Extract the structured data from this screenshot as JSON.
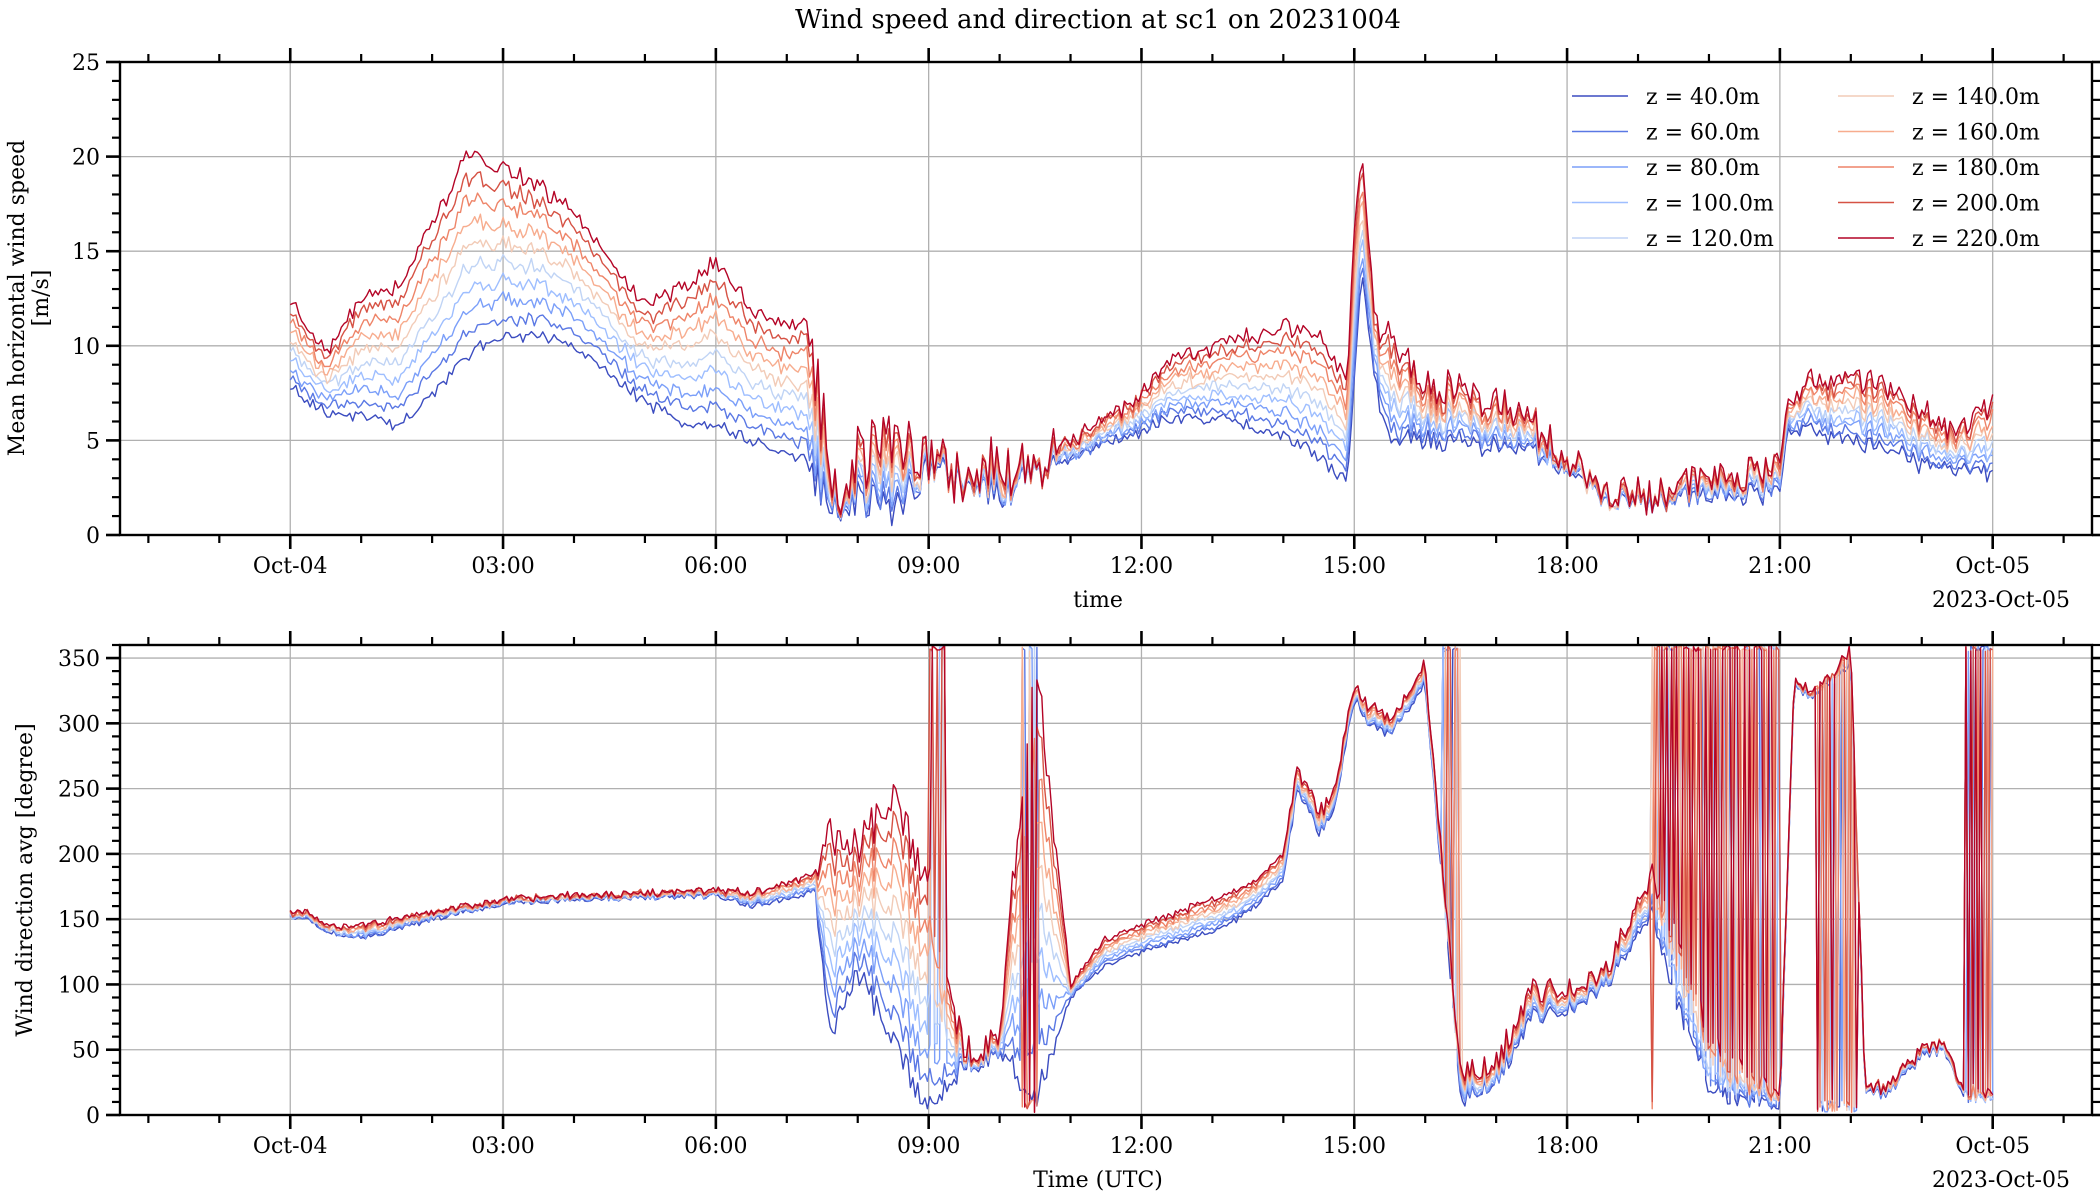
{
  "figure": {
    "title": "Wind speed and direction at sc1 on 20231004",
    "start_label": "Oct-04",
    "end_label": "Oct-05",
    "date_offset_label": "2023-Oct-05"
  },
  "chart_data": [
    {
      "type": "line",
      "ylabel_lines": [
        "Mean horizontal wind speed",
        "[m/s]"
      ],
      "xlabel": "time",
      "x_unit": "hours after 2023-10-04 00:00 UTC",
      "xlim": [
        -2.4,
        25.4
      ],
      "ylim": [
        0,
        25
      ],
      "y_major_ticks": [
        0,
        5,
        10,
        15,
        20,
        25
      ],
      "y_minor_step": 1,
      "x_major_ticks": [
        0,
        3,
        6,
        9,
        12,
        15,
        18,
        21,
        24
      ],
      "x_major_labels": [
        "Oct-04",
        "03:00",
        "06:00",
        "09:00",
        "12:00",
        "15:00",
        "18:00",
        "21:00",
        "Oct-05"
      ],
      "grid": true,
      "legend": "top-right",
      "legend_columns": 2,
      "series_names": [
        "z = 40.0m",
        "z = 60.0m",
        "z = 80.0m",
        "z = 100.0m",
        "z = 120.0m",
        "z = 140.0m",
        "z = 160.0m",
        "z = 180.0m",
        "z = 200.0m",
        "z = 220.0m"
      ],
      "series_colors": [
        "#3b4cc0",
        "#5a78e4",
        "#7b9ff9",
        "#9ebeff",
        "#c0d4f5",
        "#f2cbb7",
        "#f7ac8e",
        "#ee8468",
        "#d65244",
        "#b40426"
      ],
      "bottom_series_approx": {
        "x": [
          0,
          0.25,
          0.5,
          1.0,
          1.5,
          2.0,
          2.5,
          3.0,
          3.5,
          4.0,
          4.5,
          5.0,
          5.5,
          6.0,
          6.5,
          7.0,
          7.3,
          7.5,
          7.7,
          8.0,
          8.5,
          9.0,
          9.5,
          10.0,
          10.5,
          11.0,
          11.5,
          12.0,
          12.5,
          13.0,
          13.5,
          14.0,
          14.5,
          14.9,
          15.0,
          15.1,
          15.3,
          15.5,
          16.0,
          16.5,
          17.0,
          17.5,
          18.0,
          18.5,
          19.0,
          19.5,
          20.0,
          20.5,
          21.0,
          21.1,
          21.5,
          22.0,
          22.5,
          23.0,
          23.5,
          24.0
        ],
        "y": [
          7.8,
          7.0,
          6.5,
          6.3,
          5.8,
          7.5,
          9.5,
          10.5,
          10.5,
          10.0,
          8.5,
          7.0,
          6.0,
          5.8,
          5.0,
          4.3,
          4.0,
          2.0,
          1.5,
          2.0,
          1.5,
          3.5,
          3.0,
          2.0,
          3.8,
          4.0,
          4.8,
          5.5,
          6.2,
          6.2,
          5.8,
          5.2,
          4.2,
          2.8,
          8.0,
          14.0,
          8.0,
          5.0,
          5.2,
          4.8,
          4.8,
          4.5,
          3.5,
          2.0,
          1.8,
          2.0,
          2.0,
          2.2,
          2.3,
          5.8,
          5.5,
          5.0,
          4.5,
          3.8,
          3.5,
          3.2
        ]
      },
      "top_series_approx": {
        "x": [
          0,
          0.25,
          0.5,
          1.0,
          1.5,
          2.0,
          2.5,
          3.0,
          3.5,
          4.0,
          4.5,
          5.0,
          5.5,
          6.0,
          6.5,
          7.0,
          7.3,
          7.5,
          7.7,
          8.0,
          8.5,
          9.0,
          9.5,
          10.0,
          10.5,
          11.0,
          11.5,
          12.0,
          12.5,
          13.0,
          13.5,
          14.0,
          14.5,
          14.9,
          15.0,
          15.1,
          15.3,
          15.5,
          16.0,
          16.5,
          17.0,
          17.5,
          18.0,
          18.5,
          19.0,
          19.5,
          20.0,
          20.5,
          21.0,
          21.1,
          21.5,
          22.0,
          22.5,
          23.0,
          23.5,
          24.0
        ],
        "y": [
          12.2,
          11.0,
          9.5,
          12.5,
          13.0,
          16.5,
          20.0,
          19.5,
          18.5,
          17.0,
          14.5,
          12.0,
          13.0,
          14.5,
          12.0,
          11.0,
          11.5,
          6.0,
          2.2,
          4.0,
          5.5,
          4.0,
          3.0,
          3.5,
          4.0,
          5.0,
          6.0,
          7.5,
          9.5,
          10.0,
          10.5,
          11.0,
          10.5,
          8.0,
          16.0,
          20.5,
          11.0,
          10.5,
          8.0,
          7.5,
          7.0,
          6.0,
          4.0,
          2.5,
          2.0,
          2.5,
          3.0,
          3.2,
          3.5,
          7.5,
          8.0,
          8.5,
          7.8,
          6.5,
          5.5,
          7.0
        ]
      }
    },
    {
      "type": "line",
      "ylabel_lines": [
        "Wind direction avg [degree]"
      ],
      "xlabel": "Time (UTC)",
      "x_unit": "hours after 2023-10-04 00:00 UTC",
      "xlim": [
        -2.4,
        25.4
      ],
      "ylim": [
        0,
        360
      ],
      "y_major_ticks": [
        0,
        50,
        100,
        150,
        200,
        250,
        300,
        350
      ],
      "y_minor_step": 10,
      "x_major_ticks": [
        0,
        3,
        6,
        9,
        12,
        15,
        18,
        21,
        24
      ],
      "x_major_labels": [
        "Oct-04",
        "03:00",
        "06:00",
        "09:00",
        "12:00",
        "15:00",
        "18:00",
        "21:00",
        "Oct-05"
      ],
      "grid": true,
      "series_names": [
        "z = 40.0m",
        "z = 60.0m",
        "z = 80.0m",
        "z = 100.0m",
        "z = 120.0m",
        "z = 140.0m",
        "z = 160.0m",
        "z = 180.0m",
        "z = 200.0m",
        "z = 220.0m"
      ],
      "series_colors": [
        "#3b4cc0",
        "#5a78e4",
        "#7b9ff9",
        "#9ebeff",
        "#c0d4f5",
        "#f2cbb7",
        "#f7ac8e",
        "#ee8468",
        "#d65244",
        "#b40426"
      ],
      "direction_approx": {
        "x": [
          0,
          0.25,
          0.5,
          1.0,
          2.0,
          3.0,
          4.0,
          5.0,
          6.0,
          6.5,
          7.0,
          7.4,
          7.6,
          8.0,
          8.5,
          9.0,
          9.5,
          10.0,
          10.5,
          11.0,
          11.5,
          12.0,
          13.0,
          13.5,
          14.0,
          14.2,
          14.5,
          14.7,
          15.0,
          15.2,
          15.5,
          16.0,
          16.5,
          17.0,
          17.5,
          18.0,
          18.5,
          19.0,
          19.2,
          19.5,
          20.0,
          20.5,
          21.0,
          21.2,
          21.5,
          22.0,
          22.2,
          22.5,
          23.0,
          23.3,
          23.6,
          24.0
        ],
        "low": [
          152,
          150,
          140,
          135,
          150,
          162,
          165,
          167,
          168,
          160,
          165,
          172,
          60,
          110,
          55,
          5,
          40,
          50,
          10,
          90,
          115,
          125,
          140,
          155,
          180,
          250,
          215,
          230,
          320,
          300,
          290,
          330,
          10,
          25,
          75,
          80,
          95,
          140,
          155,
          95,
          20,
          10,
          5,
          330,
          320,
          345,
          20,
          15,
          45,
          50,
          15,
          10
        ],
        "high": [
          155,
          155,
          145,
          145,
          155,
          165,
          168,
          170,
          172,
          170,
          178,
          185,
          215,
          205,
          240,
          180,
          50,
          65,
          355,
          100,
          135,
          145,
          165,
          175,
          200,
          265,
          230,
          245,
          330,
          315,
          300,
          345,
          30,
          40,
          95,
          95,
          105,
          165,
          185,
          140,
          60,
          30,
          15,
          335,
          325,
          355,
          25,
          20,
          50,
          55,
          20,
          15
        ]
      }
    }
  ]
}
